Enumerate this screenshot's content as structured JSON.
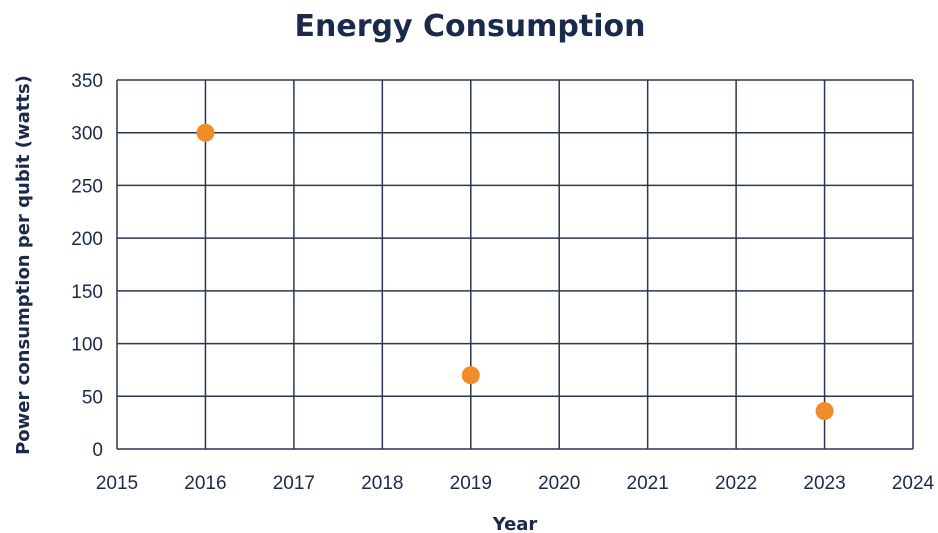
{
  "chart_data": {
    "type": "scatter",
    "title": "Energy Consumption",
    "xlabel": "Year",
    "ylabel": "Power consumption per qubit (watts)",
    "xlim": [
      2015,
      2024
    ],
    "ylim": [
      0,
      350
    ],
    "x_ticks": [
      "2015",
      "2016",
      "2017",
      "2018",
      "2019",
      "2020",
      "2021",
      "2022",
      "2023",
      "2024"
    ],
    "y_ticks": [
      "0",
      "50",
      "100",
      "150",
      "200",
      "250",
      "300",
      "350"
    ],
    "grid": true,
    "point_color": "#f28c28",
    "points": [
      {
        "x": 2016,
        "y": 300
      },
      {
        "x": 2019,
        "y": 70
      },
      {
        "x": 2023,
        "y": 36
      }
    ]
  }
}
